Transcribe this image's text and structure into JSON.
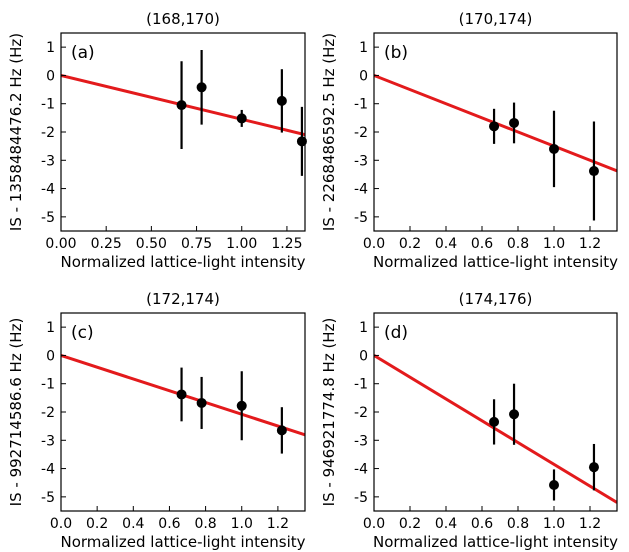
{
  "chart_data": [
    {
      "type": "scatter",
      "title": "(168,170)",
      "panel_label": "(a)",
      "xlabel": "Normalized lattice-light intensity",
      "ylabel": "IS - 1358484476.2 Hz (Hz)",
      "xlim": [
        0,
        1.35
      ],
      "ylim": [
        -5.5,
        1.5
      ],
      "xticks": [
        "0.00",
        "0.25",
        "0.50",
        "0.75",
        "1.00",
        "1.25"
      ],
      "xtick_values": [
        0,
        0.25,
        0.5,
        0.75,
        1.0,
        1.25
      ],
      "yticks": [
        "1",
        "0",
        "-1",
        "-2",
        "-3",
        "-4",
        "-5"
      ],
      "ytick_values": [
        1,
        0,
        -1,
        -2,
        -3,
        -4,
        -5
      ],
      "points": [
        {
          "x": 0.667,
          "y": -1.05,
          "err": 1.55
        },
        {
          "x": 0.778,
          "y": -0.42,
          "err": 1.32
        },
        {
          "x": 1.0,
          "y": -1.52,
          "err": 0.3
        },
        {
          "x": 1.222,
          "y": -0.9,
          "err": 1.12
        },
        {
          "x": 1.333,
          "y": -2.33,
          "err": 1.22
        }
      ],
      "fit_slope": -1.55,
      "fit_color": "#e31a1c",
      "marker_color": "#000000"
    },
    {
      "type": "scatter",
      "title": "(170,174)",
      "panel_label": "(b)",
      "xlabel": "Normalized lattice-light intensity",
      "ylabel": "IS - 2268486592.5 Hz (Hz)",
      "xlim": [
        0,
        1.35
      ],
      "ylim": [
        -5.5,
        1.5
      ],
      "xticks": [
        "0.0",
        "0.2",
        "0.4",
        "0.6",
        "0.8",
        "1.0",
        "1.2"
      ],
      "xtick_values": [
        0,
        0.2,
        0.4,
        0.6,
        0.8,
        1.0,
        1.2
      ],
      "yticks": [
        "1",
        "0",
        "-1",
        "-2",
        "-3",
        "-4",
        "-5"
      ],
      "ytick_values": [
        1,
        0,
        -1,
        -2,
        -3,
        -4,
        -5
      ],
      "points": [
        {
          "x": 0.667,
          "y": -1.8,
          "err": 0.62
        },
        {
          "x": 0.778,
          "y": -1.68,
          "err": 0.72
        },
        {
          "x": 1.0,
          "y": -2.6,
          "err": 1.35
        },
        {
          "x": 1.222,
          "y": -3.38,
          "err": 1.75
        }
      ],
      "fit_slope": -2.5,
      "fit_color": "#e31a1c",
      "marker_color": "#000000"
    },
    {
      "type": "scatter",
      "title": "(172,174)",
      "panel_label": "(c)",
      "xlabel": "Normalized lattice-light intensity",
      "ylabel": "IS - 992714586.6 Hz (Hz)",
      "xlim": [
        0,
        1.35
      ],
      "ylim": [
        -5.5,
        1.5
      ],
      "xticks": [
        "0.0",
        "0.2",
        "0.4",
        "0.6",
        "0.8",
        "1.0",
        "1.2"
      ],
      "xtick_values": [
        0,
        0.2,
        0.4,
        0.6,
        0.8,
        1.0,
        1.2
      ],
      "yticks": [
        "1",
        "0",
        "-1",
        "-2",
        "-3",
        "-4",
        "-5"
      ],
      "ytick_values": [
        1,
        0,
        -1,
        -2,
        -3,
        -4,
        -5
      ],
      "points": [
        {
          "x": 0.667,
          "y": -1.38,
          "err": 0.95
        },
        {
          "x": 0.778,
          "y": -1.68,
          "err": 0.92
        },
        {
          "x": 1.0,
          "y": -1.78,
          "err": 1.22
        },
        {
          "x": 1.222,
          "y": -2.65,
          "err": 0.82
        }
      ],
      "fit_slope": -2.08,
      "fit_color": "#e31a1c",
      "marker_color": "#000000"
    },
    {
      "type": "scatter",
      "title": "(174,176)",
      "panel_label": "(d)",
      "xlabel": "Normalized lattice-light intensity",
      "ylabel": "IS - 946921774.8 Hz (Hz)",
      "xlim": [
        0,
        1.35
      ],
      "ylim": [
        -5.5,
        1.5
      ],
      "xticks": [
        "0.0",
        "0.2",
        "0.4",
        "0.6",
        "0.8",
        "1.0",
        "1.2"
      ],
      "xtick_values": [
        0,
        0.2,
        0.4,
        0.6,
        0.8,
        1.0,
        1.2
      ],
      "yticks": [
        "1",
        "0",
        "-1",
        "-2",
        "-3",
        "-4",
        "-5"
      ],
      "ytick_values": [
        1,
        0,
        -1,
        -2,
        -3,
        -4,
        -5
      ],
      "points": [
        {
          "x": 0.667,
          "y": -2.35,
          "err": 0.8
        },
        {
          "x": 0.778,
          "y": -2.08,
          "err": 1.08
        },
        {
          "x": 1.0,
          "y": -4.58,
          "err": 0.55
        },
        {
          "x": 1.222,
          "y": -3.95,
          "err": 0.82
        }
      ],
      "fit_slope": -3.85,
      "fit_color": "#e31a1c",
      "marker_color": "#000000"
    }
  ]
}
